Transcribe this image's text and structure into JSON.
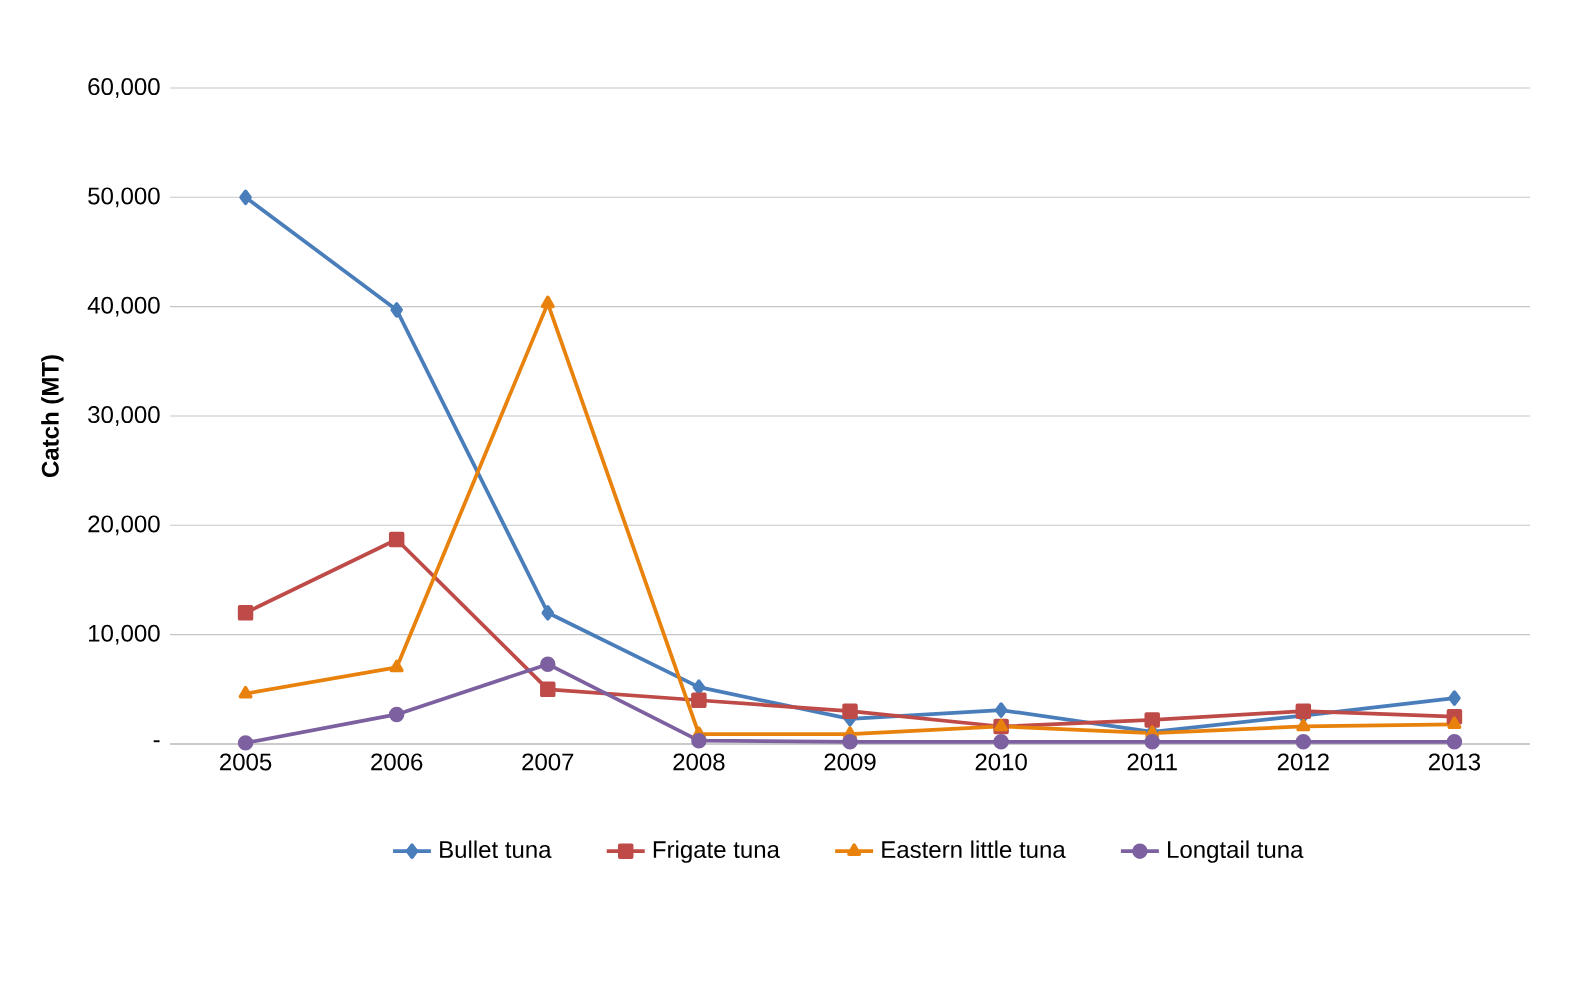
{
  "chart_data": {
    "type": "line",
    "ylabel": "Catch (MT)",
    "categories": [
      "2005",
      "2006",
      "2007",
      "2008",
      "2009",
      "2010",
      "2011",
      "2012",
      "2013"
    ],
    "series": [
      {
        "name": "Bullet tuna",
        "color": "#4a7ebb",
        "marker": "diamond",
        "values": [
          50000,
          39700,
          12000,
          5200,
          2300,
          3100,
          1100,
          2600,
          4200
        ]
      },
      {
        "name": "Frigate tuna",
        "color": "#be4b48",
        "marker": "square",
        "values": [
          12000,
          18700,
          5000,
          4000,
          3000,
          1600,
          2200,
          3000,
          2500
        ]
      },
      {
        "name": "Eastern little tuna",
        "color": "#e8820c",
        "marker": "triangle",
        "values": [
          4600,
          7000,
          40300,
          900,
          900,
          1600,
          1000,
          1600,
          1800
        ]
      },
      {
        "name": "Longtail tuna",
        "color": "#7d60a0",
        "marker": "circle",
        "values": [
          100,
          2700,
          7300,
          300,
          200,
          200,
          200,
          200,
          200
        ]
      }
    ],
    "ylim": [
      0,
      60000
    ],
    "yticks": [
      {
        "value": 0,
        "label": "-"
      },
      {
        "value": 10000,
        "label": "10,000"
      },
      {
        "value": 20000,
        "label": "20,000"
      },
      {
        "value": 30000,
        "label": "30,000"
      },
      {
        "value": 40000,
        "label": "40,000"
      },
      {
        "value": 50000,
        "label": "50,000"
      },
      {
        "value": 60000,
        "label": "60,000"
      }
    ],
    "grid": "y",
    "legend": "bottom",
    "line_style": "solid"
  }
}
